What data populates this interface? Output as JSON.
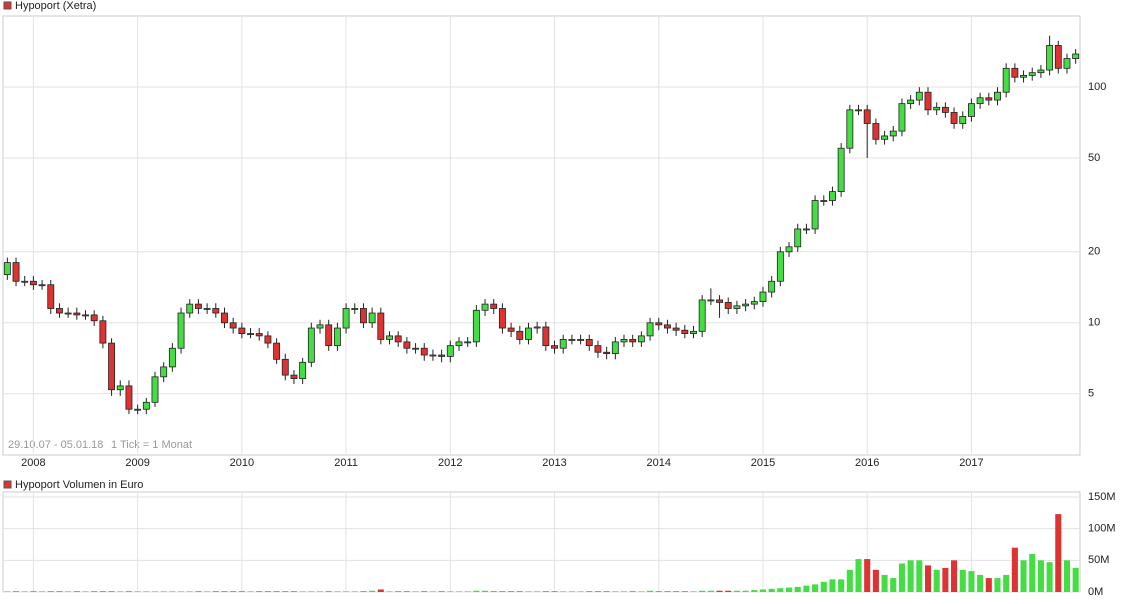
{
  "chart_data": [
    {
      "type": "candlestick",
      "title": "Hypoport (Xetra)",
      "date_range": "29.10.07 - 05.01.18",
      "tick_note": "1 Tick = 1 Monat",
      "log_scale": true,
      "grid": true,
      "colors": {
        "up": "#44dd44",
        "down": "#dd3333",
        "title_marker": "#dd3333"
      },
      "ylim": [
        2.75,
        200
      ],
      "yticks": [
        5,
        10,
        20,
        50,
        100
      ],
      "categories": [
        null,
        null,
        null,
        "2008",
        null,
        null,
        null,
        null,
        null,
        null,
        null,
        null,
        null,
        null,
        null,
        "2009",
        null,
        null,
        null,
        null,
        null,
        null,
        null,
        null,
        null,
        null,
        null,
        "2010",
        null,
        null,
        null,
        null,
        null,
        null,
        null,
        null,
        null,
        null,
        null,
        "2011",
        null,
        null,
        null,
        null,
        null,
        null,
        null,
        null,
        null,
        null,
        null,
        "2012",
        null,
        null,
        null,
        null,
        null,
        null,
        null,
        null,
        null,
        null,
        null,
        "2013",
        null,
        null,
        null,
        null,
        null,
        null,
        null,
        null,
        null,
        null,
        null,
        "2014",
        null,
        null,
        null,
        null,
        null,
        null,
        null,
        null,
        null,
        null,
        null,
        "2015",
        null,
        null,
        null,
        null,
        null,
        null,
        null,
        null,
        null,
        null,
        null,
        "2016",
        null,
        null,
        null,
        null,
        null,
        null,
        null,
        null,
        null,
        null,
        null,
        "2017",
        null,
        null,
        null,
        null,
        null,
        null,
        null,
        null,
        null,
        null,
        null,
        null
      ],
      "open": [
        16,
        18,
        15,
        15,
        14.5,
        14.5,
        11.5,
        11,
        11,
        10.8,
        10.8,
        10.2,
        8.2,
        5.2,
        5.4,
        4.3,
        4.3,
        4.6,
        5.9,
        6.5,
        7.8,
        11,
        12,
        11.5,
        11.5,
        11,
        10,
        9.5,
        9,
        9,
        8.8,
        8.2,
        7,
        6,
        5.8,
        6.8,
        9.5,
        9.8,
        8,
        9.5,
        11.5,
        11.5,
        10,
        11,
        8.5,
        8.8,
        8.3,
        7.8,
        7.8,
        7.3,
        7.3,
        7.2,
        8,
        8.3,
        8.3,
        11.3,
        12,
        11.5,
        9.5,
        9.2,
        8.5,
        9.5,
        9.6,
        8,
        7.8,
        8.5,
        8.5,
        8.5,
        8,
        7.5,
        7.4,
        8.3,
        8.5,
        8.3,
        8.8,
        10,
        9.8,
        9.5,
        9.3,
        9,
        9.2,
        12.5,
        12.5,
        12.2,
        11.5,
        11.8,
        12,
        12.3,
        13.5,
        15,
        20,
        21,
        25,
        25,
        33,
        33,
        36,
        55,
        80,
        80,
        70,
        60,
        62,
        65,
        85,
        88,
        95,
        80,
        82,
        78,
        70,
        75,
        85,
        90,
        88,
        95,
        120,
        110,
        112,
        115,
        118,
        150,
        120,
        132
      ],
      "high": [
        18.9,
        18.9,
        15.8,
        15.8,
        15.2,
        15.2,
        12.1,
        11.6,
        11.6,
        11.3,
        11.3,
        10.7,
        8.6,
        5.7,
        5.7,
        4.5,
        4.8,
        6.2,
        6.8,
        8.2,
        11.6,
        12.6,
        12.6,
        12.1,
        12.1,
        11.6,
        10.5,
        10,
        9.5,
        9.5,
        9.2,
        8.6,
        7.4,
        6.3,
        7.1,
        10,
        10.3,
        10.3,
        10,
        12.1,
        12.1,
        12.1,
        11.6,
        11.6,
        9.2,
        9.2,
        8.7,
        8.2,
        8.2,
        7.7,
        7.7,
        8.4,
        8.7,
        8.7,
        11.9,
        12.6,
        12.6,
        12.1,
        10,
        9.7,
        10,
        10.1,
        10.1,
        8.4,
        8.9,
        8.9,
        8.9,
        8.9,
        8.4,
        7.9,
        8.7,
        8.9,
        8.9,
        9.2,
        10.5,
        10.5,
        10.3,
        10,
        9.8,
        9.7,
        13.1,
        14,
        13.1,
        12.8,
        12.4,
        12.6,
        12.9,
        14.2,
        15.8,
        21,
        22,
        26.3,
        26.3,
        34.7,
        34.7,
        37.8,
        57.8,
        84,
        84,
        84,
        73.5,
        65.1,
        68.3,
        89.3,
        92.4,
        99.8,
        99.8,
        86.1,
        86.1,
        81.9,
        78.8,
        89.3,
        94.5,
        94.5,
        99.8,
        126,
        126,
        117.6,
        120.8,
        124,
        165,
        157,
        138.6,
        144.9
      ],
      "low": [
        15.2,
        14.3,
        14.3,
        13.8,
        13.8,
        10.9,
        10.5,
        10.5,
        10.3,
        10.3,
        9.7,
        7.8,
        4.9,
        4.9,
        4.1,
        4.1,
        4.1,
        4.4,
        5.6,
        6.2,
        7.4,
        10.5,
        10.9,
        10.9,
        10.5,
        9.5,
        9,
        8.6,
        8.6,
        8.4,
        7.8,
        6.7,
        5.7,
        5.5,
        5.5,
        6.5,
        9,
        7.6,
        7.6,
        9,
        10.9,
        9.5,
        9.5,
        8.1,
        8.1,
        7.9,
        7.4,
        7.4,
        6.9,
        6.9,
        6.8,
        6.8,
        7.6,
        7.9,
        7.9,
        10.7,
        10.9,
        9,
        8.7,
        8.1,
        8.1,
        9,
        7.6,
        7.4,
        7.4,
        8.1,
        8.1,
        7.6,
        7.1,
        7,
        7,
        7.9,
        7.9,
        7.9,
        8.4,
        9.3,
        9,
        8.8,
        8.6,
        8.6,
        8.7,
        11.9,
        10.5,
        10.9,
        10.9,
        11.2,
        11.4,
        11.7,
        12.8,
        14.3,
        19,
        20,
        23.8,
        23.8,
        31.4,
        31.4,
        34.2,
        52.3,
        76,
        50,
        57,
        57,
        58.9,
        61.8,
        80.8,
        83.6,
        76,
        76,
        74.1,
        66.5,
        66.5,
        71.3,
        80.8,
        83.6,
        83.6,
        90.3,
        104.5,
        104.5,
        106.4,
        109.3,
        112,
        114,
        114,
        125.4
      ],
      "close": [
        18,
        15,
        15,
        14.5,
        14.5,
        11.5,
        11,
        11,
        10.8,
        10.8,
        10.2,
        8.2,
        5.2,
        5.4,
        4.3,
        4.3,
        4.6,
        5.9,
        6.5,
        7.8,
        11,
        12,
        11.5,
        11.5,
        11,
        10,
        9.5,
        9,
        9,
        8.8,
        8.2,
        7,
        6,
        5.8,
        6.8,
        9.5,
        9.8,
        8,
        9.5,
        11.5,
        11.5,
        10,
        11,
        8.5,
        8.8,
        8.3,
        7.8,
        7.8,
        7.3,
        7.3,
        7.2,
        8,
        8.3,
        8.3,
        11.3,
        12,
        11.5,
        9.5,
        9.2,
        8.5,
        9.5,
        9.6,
        8,
        7.8,
        8.5,
        8.5,
        8.5,
        8,
        7.5,
        7.4,
        8.3,
        8.5,
        8.3,
        8.8,
        10,
        9.8,
        9.5,
        9.3,
        9,
        9.2,
        12.5,
        12.5,
        12.2,
        11.5,
        11.8,
        12,
        12.3,
        13.5,
        15,
        20,
        21,
        25,
        25,
        33,
        33,
        36,
        55,
        80,
        80,
        70,
        60,
        62,
        65,
        85,
        88,
        95,
        80,
        82,
        78,
        70,
        75,
        85,
        90,
        88,
        95,
        120,
        110,
        112,
        115,
        118,
        150,
        120,
        132,
        138
      ]
    },
    {
      "type": "bar",
      "title": "Hypoport Volumen in Euro",
      "grid": true,
      "ylim": [
        0,
        150000000
      ],
      "yticks": [
        {
          "value": 0,
          "label": "0M"
        },
        {
          "value": 50000000,
          "label": "50M"
        },
        {
          "value": 100000000,
          "label": "100M"
        },
        {
          "value": 150000000,
          "label": "150M"
        }
      ],
      "values": [
        1000000,
        1000000,
        1000000,
        1000000,
        1000000,
        1000000,
        1000000,
        1000000,
        1000000,
        1000000,
        1000000,
        1000000,
        1000000,
        1000000,
        1000000,
        1000000,
        1000000,
        1000000,
        1000000,
        1000000,
        1000000,
        1000000,
        1000000,
        1000000,
        1000000,
        1000000,
        1000000,
        1000000,
        1000000,
        1000000,
        1000000,
        1000000,
        1000000,
        1000000,
        1000000,
        1000000,
        1000000,
        1000000,
        1000000,
        1000000,
        1000000,
        1000000,
        2000000,
        4000000,
        1000000,
        1000000,
        1000000,
        1000000,
        1000000,
        1000000,
        1000000,
        1000000,
        1000000,
        1000000,
        2000000,
        2000000,
        1000000,
        1000000,
        1000000,
        1000000,
        1000000,
        1000000,
        1000000,
        1000000,
        1000000,
        1000000,
        1000000,
        1000000,
        1000000,
        1000000,
        1000000,
        1000000,
        1000000,
        1000000,
        2000000,
        1000000,
        1000000,
        1000000,
        1000000,
        1000000,
        2000000,
        2000000,
        2000000,
        2000000,
        2000000,
        2000000,
        3000000,
        4000000,
        5000000,
        6000000,
        7000000,
        8000000,
        10000000,
        12000000,
        16000000,
        20000000,
        20000000,
        35000000,
        52000000,
        52000000,
        35000000,
        27000000,
        22000000,
        45000000,
        50000000,
        50000000,
        42000000,
        35000000,
        38000000,
        50000000,
        35000000,
        33000000,
        27000000,
        22000000,
        22000000,
        27000000,
        70000000,
        50000000,
        60000000,
        50000000,
        47000000,
        123000000,
        50000000,
        38000000
      ]
    }
  ]
}
